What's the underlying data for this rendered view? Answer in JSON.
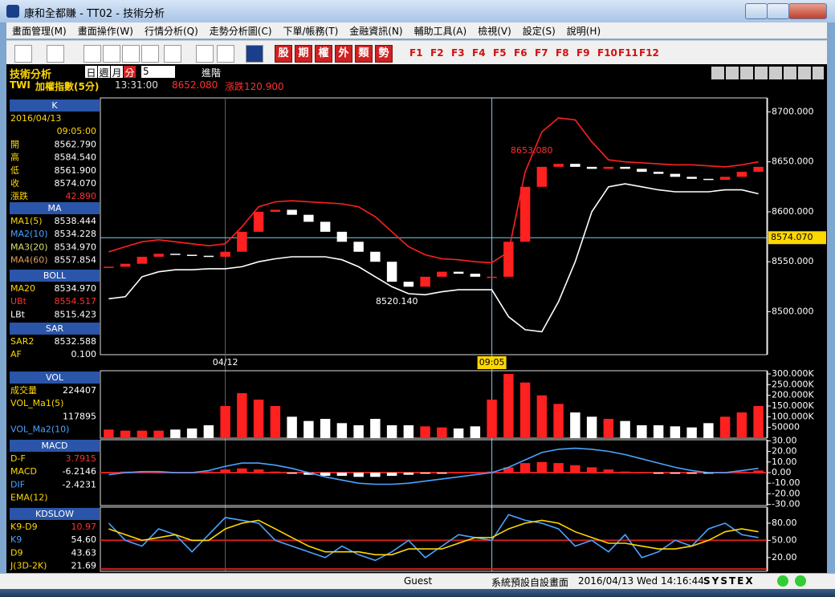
{
  "window": {
    "title": "康和全都賺 - TT02 - 技術分析"
  },
  "menu": [
    "畫面管理(M)",
    "畫面操作(W)",
    "行情分析(Q)",
    "走勢分析圖(C)",
    "下單/帳務(T)",
    "金融資訊(N)",
    "輔助工具(A)",
    "檢視(V)",
    "設定(S)",
    "說明(H)"
  ],
  "toolbar": {
    "market_buttons": [
      "股",
      "期",
      "權",
      "外",
      "類",
      "勢"
    ],
    "function_keys": [
      "F1",
      "F2",
      "F3",
      "F4",
      "F5",
      "F6",
      "F7",
      "F8",
      "F9",
      "F10",
      "F11",
      "F12"
    ]
  },
  "header": {
    "title": "技術分析",
    "periods": [
      "日",
      "週",
      "月",
      "分"
    ],
    "interval": "5",
    "advanced": "進階",
    "symbol": "TWI",
    "name": "加權指數(5分)",
    "time": "13:31:00",
    "price": "8652.080",
    "change": "漲跌120.900"
  },
  "left_panel": [
    {
      "header": "K",
      "rows": [
        {
          "label": "2016/04/13",
          "color": "#ffd700"
        },
        {
          "value": "09:05:00",
          "value_color": "#ffd700"
        },
        {
          "label": "開",
          "value": "8562.790",
          "color": "#ffd700",
          "value_color": "#ffffff"
        },
        {
          "label": "高",
          "value": "8584.540",
          "color": "#ffd700",
          "value_color": "#ffffff"
        },
        {
          "label": "低",
          "value": "8561.900",
          "color": "#ffd700",
          "value_color": "#ffffff"
        },
        {
          "label": "收",
          "value": "8574.070",
          "color": "#ffd700",
          "value_color": "#ffffff"
        },
        {
          "label": "漲跌",
          "value": "42.890",
          "color": "#ffd700",
          "value_color": "#ff3030"
        }
      ]
    },
    {
      "header": "MA",
      "rows": [
        {
          "label": "MA1(5)",
          "value": "8538.444",
          "color": "#ffd700",
          "value_color": "#ffffff"
        },
        {
          "label": "MA2(10)",
          "value": "8534.228",
          "color": "#4aa3ff",
          "value_color": "#ffffff"
        },
        {
          "label": "MA3(20)",
          "value": "8534.970",
          "color": "#d8e070",
          "value_color": "#ffffff"
        },
        {
          "label": "MA4(60)",
          "value": "8557.854",
          "color": "#e0a060",
          "value_color": "#ffffff"
        }
      ]
    },
    {
      "header": "BOLL",
      "rows": [
        {
          "label": "MA20",
          "value": "8534.970",
          "color": "#ffd700",
          "value_color": "#ffffff"
        },
        {
          "label": "UBt",
          "value": "8554.517",
          "color": "#ff3030",
          "value_color": "#ff3030"
        },
        {
          "label": "LBt",
          "value": "8515.423",
          "color": "#ffffff",
          "value_color": "#ffffff"
        }
      ]
    },
    {
      "header": "SAR",
      "rows": [
        {
          "label": "SAR2",
          "value": "8532.588",
          "color": "#ffd700",
          "value_color": "#ffffff"
        },
        {
          "label": "AF",
          "value": "0.100",
          "color": "#ffd700",
          "value_color": "#ffffff"
        }
      ]
    },
    {
      "header": "VOL",
      "rows": [
        {
          "label": "成交量",
          "value": "224407",
          "color": "#ffd700",
          "value_color": "#ffffff"
        },
        {
          "label": "VOL_Ma1(5)",
          "color": "#ffd700"
        },
        {
          "value": "117895",
          "value_color": "#ffffff"
        },
        {
          "label": "VOL_Ma2(10)",
          "color": "#4aa3ff"
        }
      ]
    },
    {
      "header": "MACD",
      "rows": [
        {
          "label": "D-F",
          "value": "3.7915",
          "color": "#ffd700",
          "value_color": "#ff3030"
        },
        {
          "label": "MACD",
          "value": "-6.2146",
          "color": "#ffd700",
          "value_color": "#ffffff"
        },
        {
          "label": "DIF",
          "value": "-2.4231",
          "color": "#4aa3ff",
          "value_color": "#ffffff"
        },
        {
          "label": "EMA(12)",
          "color": "#ffd700"
        }
      ]
    },
    {
      "header": "KDSLOW",
      "rows": [
        {
          "label": "K9-D9",
          "value": "10.97",
          "color": "#ffd700",
          "value_color": "#ff3030"
        },
        {
          "label": "K9",
          "value": "54.60",
          "color": "#4aa3ff",
          "value_color": "#ffffff"
        },
        {
          "label": "D9",
          "value": "43.63",
          "color": "#ffd700",
          "value_color": "#ffffff"
        },
        {
          "label": "J(3D-2K)",
          "value": "21.69",
          "color": "#ffd700",
          "value_color": "#ffffff"
        }
      ]
    }
  ],
  "chart_data": [
    {
      "type": "combo",
      "categories": [
        null,
        null,
        null,
        null,
        null,
        null,
        null,
        "04/12",
        null,
        null,
        null,
        null,
        null,
        null,
        null,
        null,
        null,
        null,
        null,
        null,
        null,
        null,
        null,
        "09:05",
        null,
        null,
        null,
        null,
        null,
        null,
        null,
        null,
        null,
        null,
        null,
        null,
        null,
        null,
        null,
        null
      ],
      "ylim": [
        8457,
        8714
      ],
      "yticks": [
        {
          "value": 8700,
          "label": "8700.000"
        },
        {
          "value": 8650,
          "label": "8650.000"
        },
        {
          "value": 8600,
          "label": "8600.000"
        },
        {
          "value": 8550,
          "label": "8550.000"
        },
        {
          "value": 8500,
          "label": "8500.000"
        }
      ],
      "last_price": {
        "value": 8574.07,
        "label": "8574.070"
      },
      "annotations": [
        "8653.080",
        "8520.140"
      ],
      "series": [
        {
          "type": "line",
          "color": "#ff2020",
          "values": [
            8560,
            8565,
            8570,
            8572,
            8570,
            8568,
            8566,
            8568,
            8585,
            8605,
            8610,
            8611,
            8610,
            8609,
            8608,
            8605,
            8595,
            8580,
            8565,
            8557,
            8553,
            8552,
            8550,
            8549,
            8560,
            8640,
            8680,
            8694,
            8692,
            8670,
            8652,
            8650,
            8649,
            8648,
            8647,
            8647,
            8646,
            8645,
            8647,
            8650
          ]
        },
        {
          "type": "line",
          "color": "#ffffff",
          "values": [
            8513,
            8515,
            8535,
            8540,
            8542,
            8542,
            8543,
            8543,
            8545,
            8550,
            8553,
            8555,
            8555,
            8555,
            8552,
            8545,
            8535,
            8525,
            8518,
            8517,
            8520,
            8522,
            8522,
            8522,
            8495,
            8482,
            8480,
            8510,
            8550,
            8600,
            8625,
            8628,
            8625,
            8622,
            8620,
            8620,
            8620,
            8622,
            8622,
            8618
          ]
        },
        {
          "type": "price",
          "color": "#ff2020",
          "values": [
            8545,
            8548,
            8555,
            8558,
            8557,
            8556,
            8555,
            8560,
            8580,
            8600,
            8602,
            8597,
            8590,
            8580,
            8570,
            8560,
            8550,
            8530,
            8525,
            8535,
            8540,
            8538,
            8535,
            8535,
            8570,
            8625,
            8645,
            8648,
            8645,
            8643,
            8645,
            8643,
            8640,
            8638,
            8635,
            8633,
            8632,
            8635,
            8640,
            8645
          ]
        }
      ]
    },
    {
      "type": "combo",
      "ylim": [
        0,
        315000
      ],
      "yticks": [
        {
          "value": 300000,
          "label": "300.000K"
        },
        {
          "value": 250000,
          "label": "250.000K"
        },
        {
          "value": 200000,
          "label": "200.000K"
        },
        {
          "value": 150000,
          "label": "150.000K"
        },
        {
          "value": 100000,
          "label": "100.000K"
        },
        50000
      ],
      "series": [
        {
          "type": "volume",
          "color": "#ff2020",
          "values": [
            40000,
            35000,
            35000,
            35000,
            40000,
            45000,
            60000,
            150000,
            210000,
            180000,
            150000,
            100000,
            80000,
            90000,
            70000,
            60000,
            90000,
            60000,
            60000,
            55000,
            50000,
            45000,
            55000,
            180000,
            300000,
            260000,
            200000,
            160000,
            120000,
            100000,
            90000,
            80000,
            60000,
            60000,
            55000,
            50000,
            70000,
            100000,
            120000,
            150000
          ]
        }
      ]
    },
    {
      "type": "combo",
      "ylim": [
        -31,
        31
      ],
      "yticks": [
        {
          "value": 30,
          "label": "30.00"
        },
        {
          "value": 20,
          "label": "20.00"
        },
        {
          "value": 10,
          "label": "10.00"
        },
        {
          "value": 0,
          "label": "0.00"
        },
        {
          "value": -10,
          "label": "-10.00"
        },
        {
          "value": -20,
          "label": "-20.00"
        },
        {
          "value": -30,
          "label": "-30.00"
        }
      ],
      "series": [
        {
          "type": "histogram",
          "color": "#ff2020",
          "values": [
            0,
            1,
            1,
            0,
            0,
            0,
            1,
            3,
            4,
            3,
            1,
            -1,
            -2,
            -3,
            -3,
            -4,
            -4,
            -3,
            -2,
            -1,
            -1,
            0,
            0,
            1,
            5,
            9,
            10,
            9,
            7,
            5,
            3,
            1,
            0,
            -1,
            -1,
            -1,
            -1,
            0,
            1,
            2
          ]
        },
        {
          "type": "line",
          "color": "#4aa3ff",
          "values": [
            -2,
            0,
            1,
            1,
            0,
            0,
            2,
            6,
            9,
            9,
            7,
            4,
            0,
            -4,
            -7,
            -10,
            -11,
            -11,
            -10,
            -8,
            -6,
            -4,
            -2,
            0,
            5,
            12,
            19,
            22,
            23,
            22,
            20,
            17,
            13,
            9,
            5,
            2,
            0,
            0,
            2,
            4
          ]
        }
      ]
    },
    {
      "type": "combo",
      "ylim": [
        -4,
        108
      ],
      "yticks": [
        {
          "value": 80,
          "label": "80.00"
        },
        {
          "value": 50,
          "label": "50.00"
        },
        {
          "value": 20,
          "label": "20.00"
        }
      ],
      "series": [
        {
          "type": "line",
          "color": "#4aa3ff",
          "values": [
            80,
            50,
            40,
            70,
            60,
            30,
            60,
            90,
            85,
            80,
            50,
            40,
            30,
            20,
            40,
            25,
            15,
            30,
            50,
            20,
            40,
            60,
            55,
            50,
            95,
            85,
            80,
            70,
            40,
            50,
            30,
            60,
            20,
            30,
            50,
            40,
            70,
            80,
            60,
            55
          ]
        },
        {
          "type": "line",
          "color": "#ffd700",
          "values": [
            70,
            60,
            50,
            55,
            60,
            50,
            50,
            70,
            80,
            85,
            70,
            55,
            40,
            30,
            30,
            30,
            25,
            25,
            35,
            35,
            35,
            45,
            55,
            55,
            70,
            80,
            85,
            80,
            65,
            55,
            45,
            45,
            40,
            35,
            35,
            40,
            50,
            65,
            70,
            65
          ]
        }
      ]
    }
  ],
  "status": {
    "user": "Guest",
    "layout": "系統預設自設畫面",
    "datetime": "2016/04/13 Wed 14:16:44",
    "brand": "SYSTEX"
  }
}
